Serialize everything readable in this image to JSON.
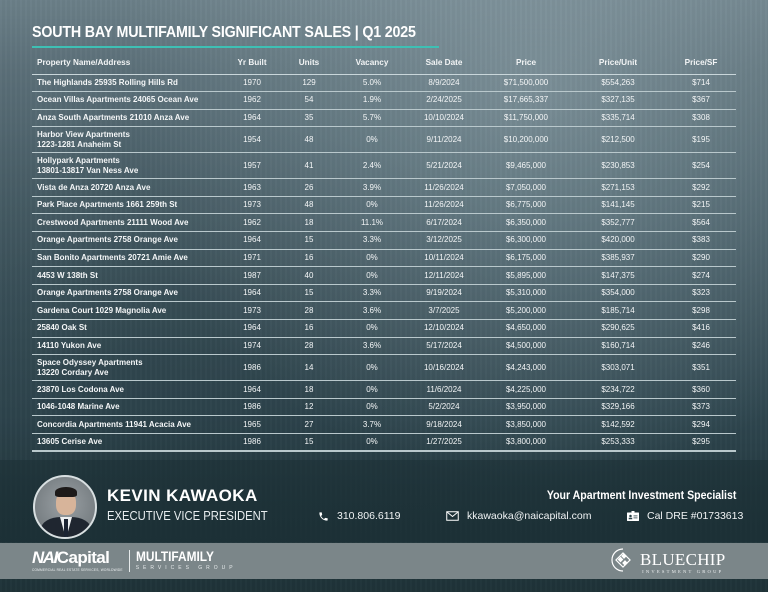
{
  "header": {
    "title": "SOUTH BAY MULTIFAMILY SIGNIFICANT SALES | Q1 2025",
    "accent_color": "#3ec0b4"
  },
  "table": {
    "columns": [
      "Property Name/Address",
      "Yr Built",
      "Units",
      "Vacancy",
      "Sale Date",
      "Price",
      "Price/Unit",
      "Price/SF"
    ],
    "rows": [
      {
        "name": "The Highlands 25935 Rolling Hills Rd",
        "name2": "",
        "yr": "1970",
        "units": "129",
        "vacancy": "5.0%",
        "date": "8/9/2024",
        "price": "$71,500,000",
        "ppu": "$554,263",
        "psf": "$714"
      },
      {
        "name": "Ocean Villas Apartments 24065 Ocean Ave",
        "name2": "",
        "yr": "1962",
        "units": "54",
        "vacancy": "1.9%",
        "date": "2/24/2025",
        "price": "$17,665,337",
        "ppu": "$327,135",
        "psf": "$367"
      },
      {
        "name": "Anza South Apartments 21010 Anza Ave",
        "name2": "",
        "yr": "1964",
        "units": "35",
        "vacancy": "5.7%",
        "date": "10/10/2024",
        "price": "$11,750,000",
        "ppu": "$335,714",
        "psf": "$308"
      },
      {
        "name": "Harbor View Apartments",
        "name2": "1223-1281 Anaheim St",
        "yr": "1954",
        "units": "48",
        "vacancy": "0%",
        "date": "9/11/2024",
        "price": "$10,200,000",
        "ppu": "$212,500",
        "psf": "$195"
      },
      {
        "name": "Hollypark Apartments",
        "name2": "13801-13817 Van Ness Ave",
        "yr": "1957",
        "units": "41",
        "vacancy": "2.4%",
        "date": "5/21/2024",
        "price": "$9,465,000",
        "ppu": "$230,853",
        "psf": "$254"
      },
      {
        "name": "Vista de Anza 20720 Anza Ave",
        "name2": "",
        "yr": "1963",
        "units": "26",
        "vacancy": "3.9%",
        "date": "11/26/2024",
        "price": "$7,050,000",
        "ppu": "$271,153",
        "psf": "$292"
      },
      {
        "name": "Park Place Apartments 1661 259th St",
        "name2": "",
        "yr": "1973",
        "units": "48",
        "vacancy": "0%",
        "date": "11/26/2024",
        "price": "$6,775,000",
        "ppu": "$141,145",
        "psf": "$215"
      },
      {
        "name": "Crestwood Apartments 21111 Wood Ave",
        "name2": "",
        "yr": "1962",
        "units": "18",
        "vacancy": "11.1%",
        "date": "6/17/2024",
        "price": "$6,350,000",
        "ppu": "$352,777",
        "psf": "$564"
      },
      {
        "name": "Orange Apartments 2758 Orange Ave",
        "name2": "",
        "yr": "1964",
        "units": "15",
        "vacancy": "3.3%",
        "date": "3/12/2025",
        "price": "$6,300,000",
        "ppu": "$420,000",
        "psf": "$383"
      },
      {
        "name": "San Bonito Apartments 20721 Amie Ave",
        "name2": "",
        "yr": "1971",
        "units": "16",
        "vacancy": "0%",
        "date": "10/11/2024",
        "price": "$6,175,000",
        "ppu": "$385,937",
        "psf": "$290"
      },
      {
        "name": "4453 W 138th St",
        "name2": "",
        "yr": "1987",
        "units": "40",
        "vacancy": "0%",
        "date": "12/11/2024",
        "price": "$5,895,000",
        "ppu": "$147,375",
        "psf": "$274"
      },
      {
        "name": "Orange Apartments 2758 Orange Ave",
        "name2": "",
        "yr": "1964",
        "units": "15",
        "vacancy": "3.3%",
        "date": "9/19/2024",
        "price": "$5,310,000",
        "ppu": "$354,000",
        "psf": "$323"
      },
      {
        "name": "Gardena Court 1029 Magnolia Ave",
        "name2": "",
        "yr": "1973",
        "units": "28",
        "vacancy": "3.6%",
        "date": "3/7/2025",
        "price": "$5,200,000",
        "ppu": "$185,714",
        "psf": "$298"
      },
      {
        "name": "25840 Oak St",
        "name2": "",
        "yr": "1964",
        "units": "16",
        "vacancy": "0%",
        "date": "12/10/2024",
        "price": "$4,650,000",
        "ppu": "$290,625",
        "psf": "$416"
      },
      {
        "name": "14110 Yukon Ave",
        "name2": "",
        "yr": "1974",
        "units": "28",
        "vacancy": "3.6%",
        "date": "5/17/2024",
        "price": "$4,500,000",
        "ppu": "$160,714",
        "psf": "$246"
      },
      {
        "name": "Space Odyssey Apartments",
        "name2": "13220 Cordary Ave",
        "yr": "1986",
        "units": "14",
        "vacancy": "0%",
        "date": "10/16/2024",
        "price": "$4,243,000",
        "ppu": "$303,071",
        "psf": "$351"
      },
      {
        "name": "23870 Los Codona Ave",
        "name2": "",
        "yr": "1964",
        "units": "18",
        "vacancy": "0%",
        "date": "11/6/2024",
        "price": "$4,225,000",
        "ppu": "$234,722",
        "psf": "$360"
      },
      {
        "name": "1046-1048 Marine Ave",
        "name2": "",
        "yr": "1986",
        "units": "12",
        "vacancy": "0%",
        "date": "5/2/2024",
        "price": "$3,950,000",
        "ppu": "$329,166",
        "psf": "$373"
      },
      {
        "name": "Concordia Apartments 11941 Acacia Ave",
        "name2": "",
        "yr": "1965",
        "units": "27",
        "vacancy": "3.7%",
        "date": "9/18/2024",
        "price": "$3,850,000",
        "ppu": "$142,592",
        "psf": "$294"
      },
      {
        "name": "13605 Cerise Ave",
        "name2": "",
        "yr": "1986",
        "units": "15",
        "vacancy": "0%",
        "date": "1/27/2025",
        "price": "$3,800,000",
        "ppu": "$253,333",
        "psf": "$295"
      }
    ]
  },
  "agent": {
    "name": "KEVIN KAWAOKA",
    "title": "EXECUTIVE VICE PRESIDENT",
    "avatar_icon": "person-photo",
    "tagline": "Your Apartment Investment Specialist",
    "phone": "310.806.6119",
    "phone_icon": "phone-icon",
    "email": "kkawaoka@naicapital.com",
    "email_icon": "envelope-icon",
    "license": "Cal DRE #01733613",
    "license_icon": "id-card-icon"
  },
  "logos": {
    "nai_word_n": "NAI",
    "nai_word_rest": "Capital",
    "nai_sub": "COMMERCIAL REAL ESTATE SERVICES, WORLDWIDE",
    "mf_word": "MULTIFAMILY",
    "mf_sub": "SERVICES GROUP",
    "bc_word": "BLUECHIP",
    "bc_sub": "INVESTMENT GROUP"
  }
}
